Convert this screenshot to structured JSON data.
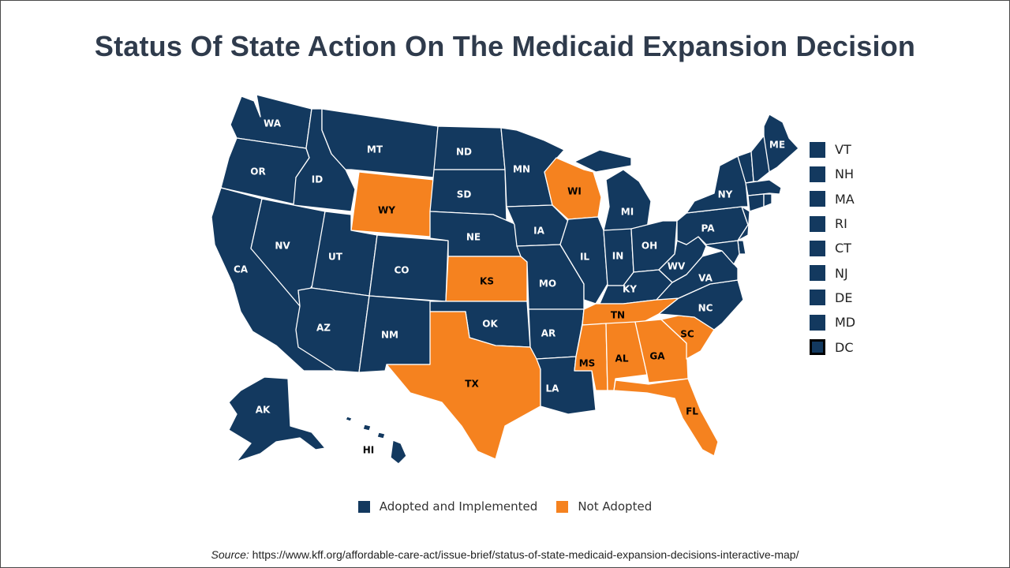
{
  "title": "Status Of State Action On The Medicaid Expansion Decision",
  "colors": {
    "adopted": "#13395f",
    "not_adopted": "#f5821f",
    "border": "#ffffff"
  },
  "legend": {
    "adopted_label": "Adopted and Implemented",
    "not_adopted_label": "Not Adopted"
  },
  "small_states": [
    {
      "code": "VT",
      "status": "adopted"
    },
    {
      "code": "NH",
      "status": "adopted"
    },
    {
      "code": "MA",
      "status": "adopted"
    },
    {
      "code": "RI",
      "status": "adopted"
    },
    {
      "code": "CT",
      "status": "adopted"
    },
    {
      "code": "NJ",
      "status": "adopted"
    },
    {
      "code": "DE",
      "status": "adopted"
    },
    {
      "code": "MD",
      "status": "adopted"
    },
    {
      "code": "DC",
      "status": "adopted"
    }
  ],
  "states": [
    {
      "code": "WA",
      "status": "adopted"
    },
    {
      "code": "OR",
      "status": "adopted"
    },
    {
      "code": "CA",
      "status": "adopted"
    },
    {
      "code": "ID",
      "status": "adopted"
    },
    {
      "code": "NV",
      "status": "adopted"
    },
    {
      "code": "MT",
      "status": "adopted"
    },
    {
      "code": "WY",
      "status": "not_adopted"
    },
    {
      "code": "UT",
      "status": "adopted"
    },
    {
      "code": "AZ",
      "status": "adopted"
    },
    {
      "code": "CO",
      "status": "adopted"
    },
    {
      "code": "NM",
      "status": "adopted"
    },
    {
      "code": "ND",
      "status": "adopted"
    },
    {
      "code": "SD",
      "status": "adopted"
    },
    {
      "code": "NE",
      "status": "adopted"
    },
    {
      "code": "KS",
      "status": "not_adopted"
    },
    {
      "code": "OK",
      "status": "adopted"
    },
    {
      "code": "TX",
      "status": "not_adopted"
    },
    {
      "code": "MN",
      "status": "adopted"
    },
    {
      "code": "IA",
      "status": "adopted"
    },
    {
      "code": "MO",
      "status": "adopted"
    },
    {
      "code": "AR",
      "status": "adopted"
    },
    {
      "code": "LA",
      "status": "adopted"
    },
    {
      "code": "WI",
      "status": "not_adopted"
    },
    {
      "code": "IL",
      "status": "adopted"
    },
    {
      "code": "MI",
      "status": "adopted"
    },
    {
      "code": "IN",
      "status": "adopted"
    },
    {
      "code": "OH",
      "status": "adopted"
    },
    {
      "code": "KY",
      "status": "adopted"
    },
    {
      "code": "TN",
      "status": "not_adopted"
    },
    {
      "code": "MS",
      "status": "not_adopted"
    },
    {
      "code": "AL",
      "status": "not_adopted"
    },
    {
      "code": "GA",
      "status": "not_adopted"
    },
    {
      "code": "FL",
      "status": "not_adopted"
    },
    {
      "code": "SC",
      "status": "not_adopted"
    },
    {
      "code": "NC",
      "status": "adopted"
    },
    {
      "code": "VA",
      "status": "adopted"
    },
    {
      "code": "WV",
      "status": "adopted"
    },
    {
      "code": "PA",
      "status": "adopted"
    },
    {
      "code": "NY",
      "status": "adopted"
    },
    {
      "code": "ME",
      "status": "adopted"
    },
    {
      "code": "VT",
      "status": "adopted"
    },
    {
      "code": "NH",
      "status": "adopted"
    },
    {
      "code": "MA",
      "status": "adopted"
    },
    {
      "code": "CT",
      "status": "adopted"
    },
    {
      "code": "RI",
      "status": "adopted"
    },
    {
      "code": "NJ",
      "status": "adopted"
    },
    {
      "code": "DE",
      "status": "adopted"
    },
    {
      "code": "MD",
      "status": "adopted"
    },
    {
      "code": "AK",
      "status": "adopted"
    },
    {
      "code": "HI",
      "status": "adopted"
    }
  ],
  "source": {
    "prefix": "Source:",
    "url": "https://www.kff.org/affordable-care-act/issue-brief/status-of-state-medicaid-expansion-decisions-interactive-map/"
  }
}
